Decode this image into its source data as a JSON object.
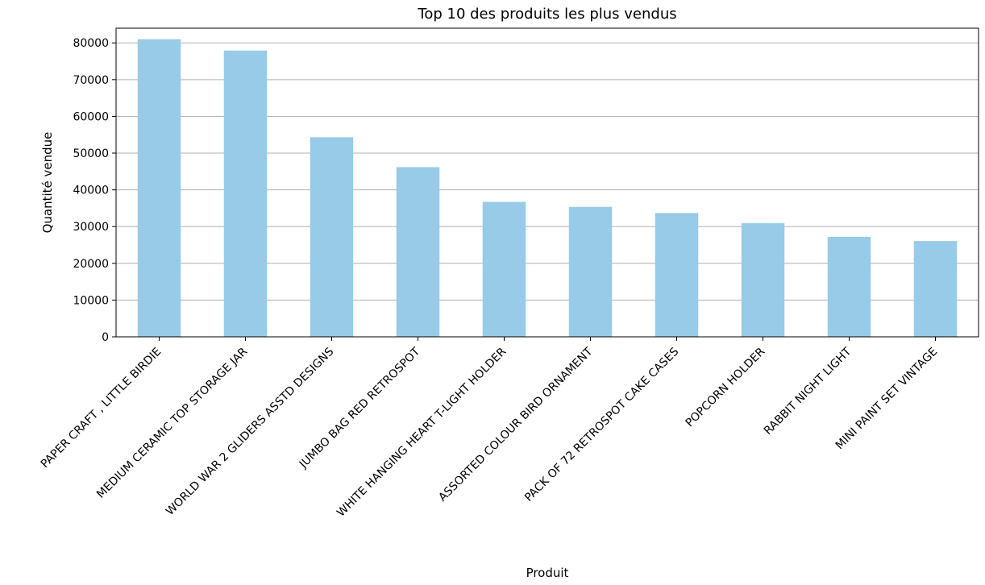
{
  "chart_data": {
    "type": "bar",
    "title": "Top 10 des produits les plus vendus",
    "xlabel": "Produit",
    "ylabel": "Quantité vendue",
    "categories": [
      "PAPER CRAFT , LITTLE BIRDIE",
      "MEDIUM CERAMIC TOP STORAGE JAR",
      "WORLD WAR 2 GLIDERS ASSTD DESIGNS",
      "JUMBO BAG RED RETROSPOT",
      "WHITE HANGING HEART T-LIGHT HOLDER",
      "ASSORTED COLOUR BIRD ORNAMENT",
      "PACK OF 72 RETROSPOT CAKE CASES",
      "POPCORN HOLDER",
      "RABBIT NIGHT LIGHT",
      "MINI PAINT SET VINTAGE"
    ],
    "values": [
      80995,
      77916,
      54319,
      46181,
      36725,
      35362,
      33693,
      30931,
      27202,
      26076
    ],
    "ylim": [
      0,
      84000
    ],
    "yticks": [
      0,
      10000,
      20000,
      30000,
      40000,
      50000,
      60000,
      70000,
      80000
    ],
    "grid": "y",
    "legend": "none",
    "colors": {
      "bar": "#97cbe8",
      "grid": "#b0b0b0",
      "axis": "#000000"
    }
  }
}
